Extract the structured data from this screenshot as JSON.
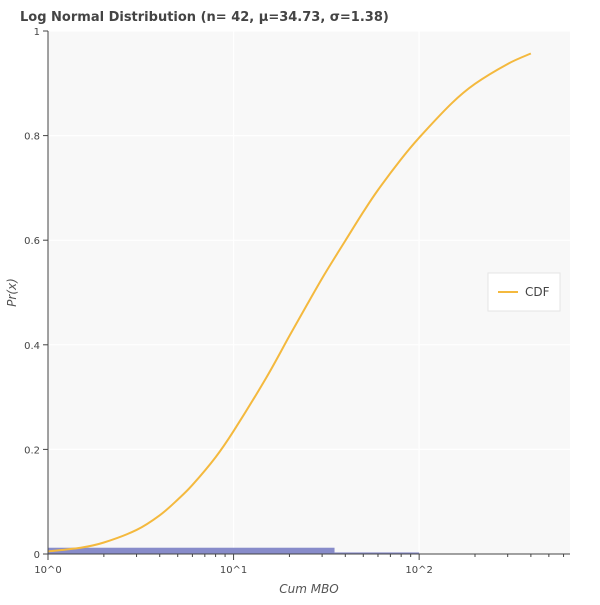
{
  "chart_data": {
    "type": "line",
    "title": "Log Normal Distribution (n= 42, μ=34.73, σ=1.38)",
    "xlabel": "Cum MBO",
    "ylabel": "Pr(x)",
    "x_scale": "log",
    "xlim": [
      1,
      650
    ],
    "ylim": [
      0,
      1
    ],
    "x_ticks": [
      {
        "value": 1,
        "label": "10^0"
      },
      {
        "value": 10,
        "label": "10^1"
      },
      {
        "value": 100,
        "label": "10^2"
      }
    ],
    "y_ticks": [
      {
        "value": 0,
        "label": "0"
      },
      {
        "value": 0.2,
        "label": "0.2"
      },
      {
        "value": 0.4,
        "label": "0.4"
      },
      {
        "value": 0.6,
        "label": "0.6"
      },
      {
        "value": 0.8,
        "label": "0.8"
      },
      {
        "value": 1,
        "label": "1"
      }
    ],
    "series": [
      {
        "name": "CDF",
        "color": "#f4b93e",
        "x": [
          1,
          1.5,
          2,
          3,
          4,
          5,
          6,
          8,
          10,
          15,
          20,
          25,
          30,
          34.73,
          40,
          50,
          60,
          80,
          100,
          150,
          200,
          300,
          400
        ],
        "y": [
          0.005,
          0.012,
          0.022,
          0.046,
          0.074,
          0.104,
          0.132,
          0.185,
          0.235,
          0.337,
          0.417,
          0.478,
          0.527,
          0.564,
          0.599,
          0.654,
          0.696,
          0.755,
          0.796,
          0.862,
          0.899,
          0.937,
          0.957
        ]
      }
    ],
    "histogram": {
      "color": "#7b7fc4",
      "bins": [
        {
          "x0": 1,
          "x1": 35,
          "height": 0.012
        },
        {
          "x0": 35,
          "x1": 100,
          "height": 0.003
        }
      ]
    },
    "grid": true,
    "legend": {
      "position": "right",
      "entries": [
        "CDF"
      ]
    },
    "background": "#f8f8f8"
  }
}
